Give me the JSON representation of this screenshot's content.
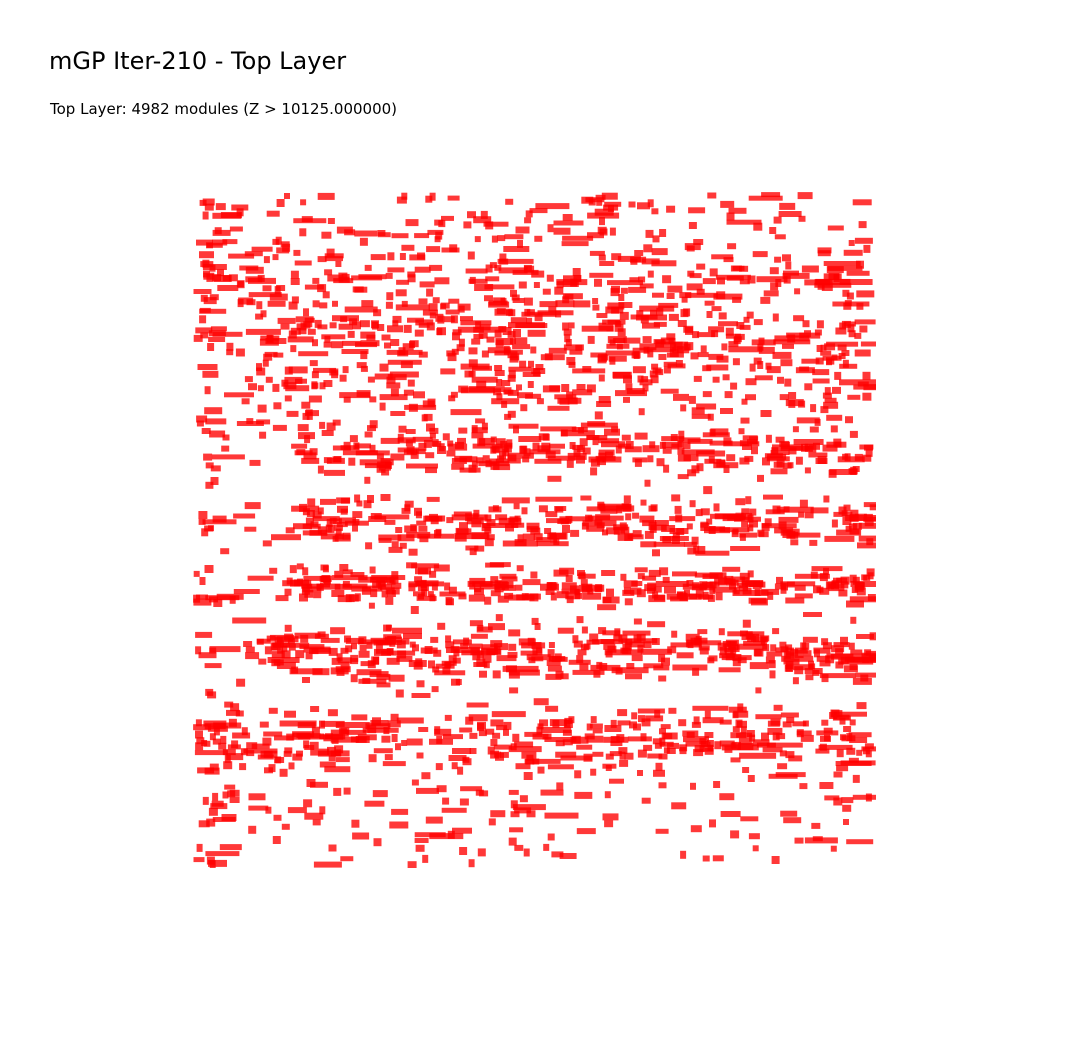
{
  "title": "mGP Iter-210 - Top Layer",
  "subtitle": "Top Layer: 4982 modules (Z > 10125.000000)",
  "colors": {
    "module_fill": "#ff0000",
    "background": "#ffffff"
  },
  "layer": {
    "name": "Top Layer",
    "module_count": 4982,
    "z_threshold": 10125.0
  }
}
